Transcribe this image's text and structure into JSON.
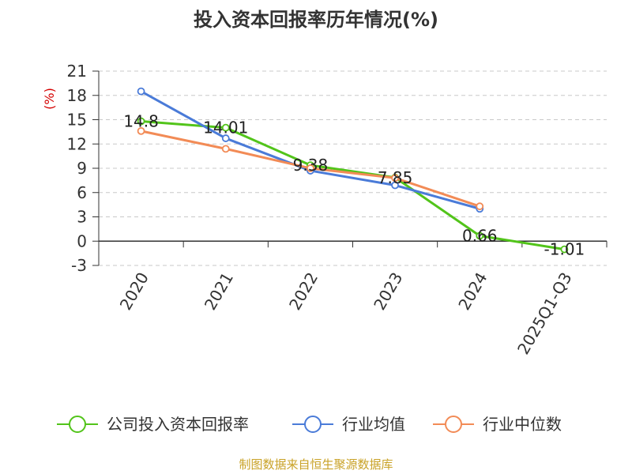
{
  "chart_data": {
    "type": "line",
    "title": "投入资本回报率历年情况(%)",
    "ylabel": "(%)",
    "ylim": [
      -3,
      21
    ],
    "yticks": [
      21,
      18,
      15,
      12,
      9,
      6,
      3,
      0,
      -3
    ],
    "categories": [
      "2020",
      "2021",
      "2022",
      "2023",
      "2024",
      "2025Q1-Q3"
    ],
    "grid": true,
    "legend_position": "bottom",
    "series": [
      {
        "name": "公司投入资本回报率",
        "color": "#52c41a",
        "values": [
          14.8,
          14.01,
          9.38,
          7.85,
          0.66,
          -1.01
        ],
        "labels": [
          "14.8",
          "14.01",
          "9.38",
          "7.85",
          "0.66",
          "-1.01"
        ]
      },
      {
        "name": "行业均值",
        "color": "#4a7bd8",
        "values": [
          18.5,
          12.7,
          8.7,
          6.9,
          4.0,
          null
        ]
      },
      {
        "name": "行业中位数",
        "color": "#f28b56",
        "values": [
          13.6,
          11.4,
          9.0,
          7.8,
          4.3,
          null
        ]
      }
    ]
  },
  "footer": {
    "source": "制图数据来自恒生聚源数据库"
  }
}
